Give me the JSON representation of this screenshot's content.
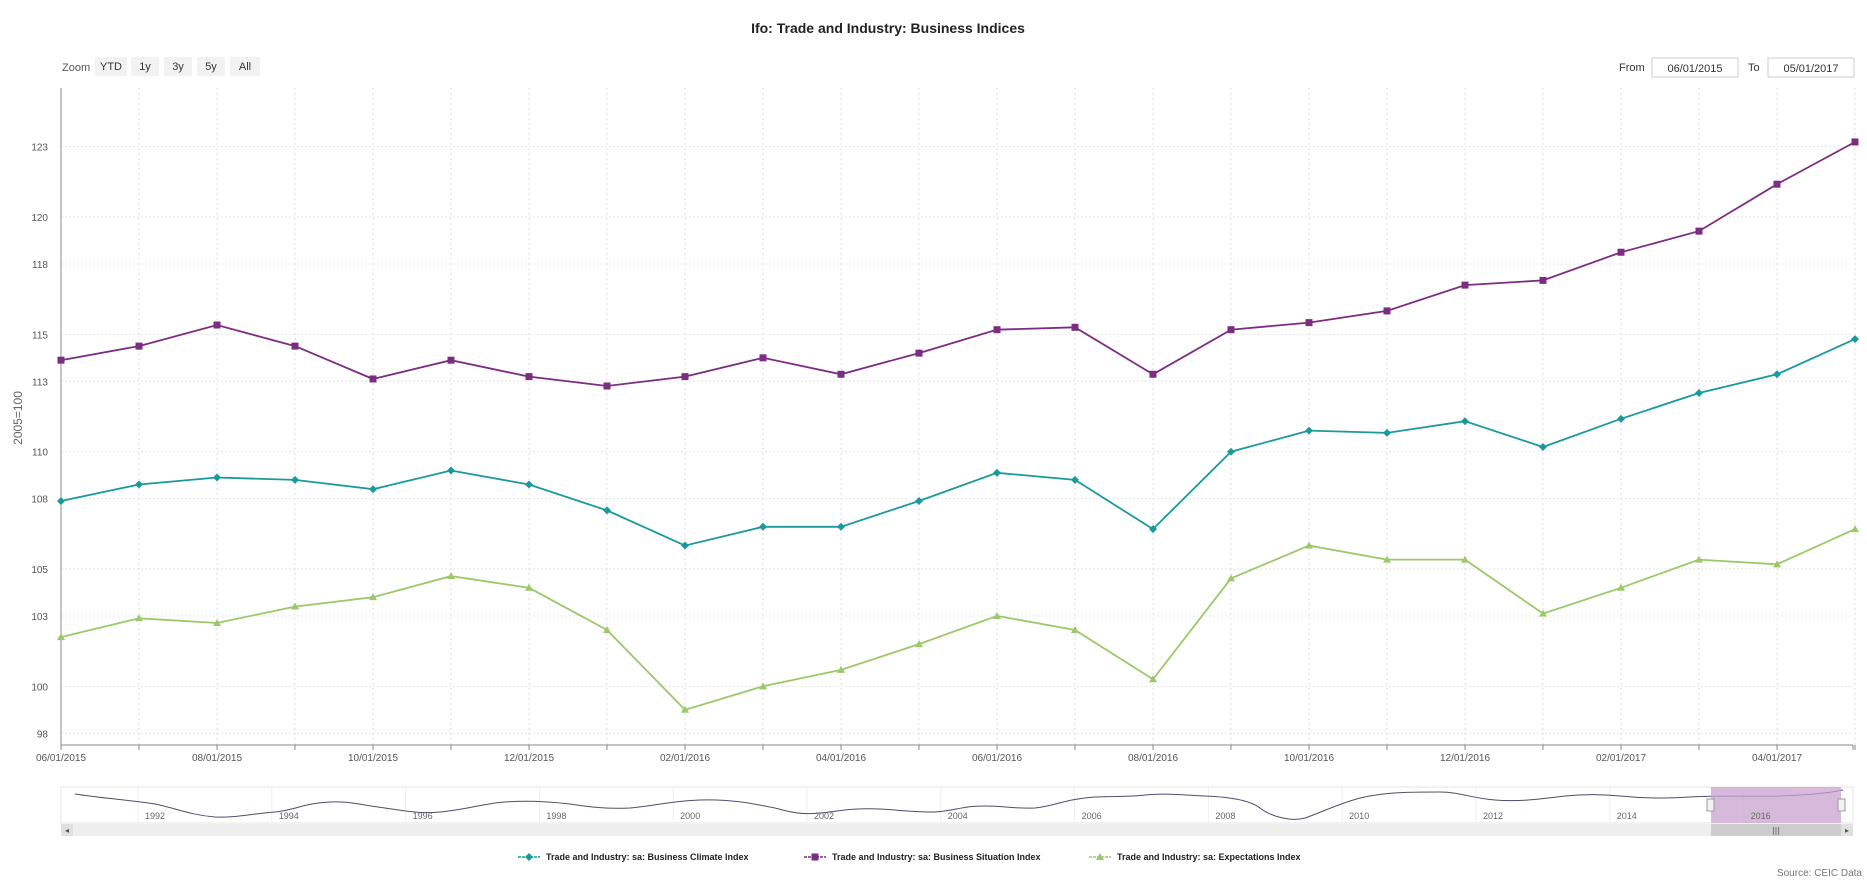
{
  "chart_data": {
    "type": "line",
    "title": "Ifo: Trade and Industry: Business Indices",
    "ylabel": "2005=100",
    "ylim": [
      97.5,
      125.5
    ],
    "yticks": [
      98,
      100,
      103,
      105,
      108,
      110,
      113,
      115,
      118,
      120,
      123
    ],
    "x": [
      "06/01/2015",
      "07/01/2015",
      "08/01/2015",
      "09/01/2015",
      "10/01/2015",
      "11/01/2015",
      "12/01/2015",
      "01/01/2016",
      "02/01/2016",
      "03/01/2016",
      "04/01/2016",
      "05/01/2016",
      "06/01/2016",
      "07/01/2016",
      "08/01/2016",
      "09/01/2016",
      "10/01/2016",
      "11/01/2016",
      "12/01/2016",
      "01/01/2017",
      "02/01/2017",
      "03/01/2017",
      "04/01/2017",
      "05/01/2017"
    ],
    "xtick_labels": [
      "06/01/2015",
      "",
      "08/01/2015",
      "",
      "10/01/2015",
      "",
      "12/01/2015",
      "",
      "02/01/2016",
      "",
      "04/01/2016",
      "",
      "06/01/2016",
      "",
      "08/01/2016",
      "",
      "10/01/2016",
      "",
      "12/01/2016",
      "",
      "02/01/2017",
      "",
      "04/01/2017",
      ""
    ],
    "grid": true,
    "legend_position": "bottom",
    "series": [
      {
        "name": "Trade and Industry: sa: Business Climate Index",
        "color": "#1a9a9c",
        "marker": "diamond",
        "values": [
          107.9,
          108.6,
          108.9,
          108.8,
          108.4,
          109.2,
          108.6,
          107.5,
          106.0,
          106.8,
          106.8,
          107.9,
          109.1,
          108.8,
          106.7,
          110.0,
          110.9,
          110.8,
          111.3,
          110.2,
          111.4,
          112.5,
          113.3,
          114.8
        ]
      },
      {
        "name": "Trade and Industry: sa: Business Situation Index",
        "color": "#7b2d82",
        "marker": "square",
        "values": [
          113.9,
          114.5,
          115.4,
          114.5,
          113.1,
          113.9,
          113.2,
          112.8,
          113.2,
          114.0,
          113.3,
          114.2,
          115.2,
          115.3,
          113.3,
          115.2,
          115.5,
          116.0,
          117.1,
          117.3,
          118.5,
          119.4,
          121.4,
          123.2
        ]
      },
      {
        "name": "Trade and Industry: sa: Expectations Index",
        "color": "#9dc86a",
        "marker": "triangle",
        "values": [
          102.1,
          102.9,
          102.7,
          103.4,
          103.8,
          104.7,
          104.2,
          102.4,
          99.0,
          100.0,
          100.7,
          101.8,
          103.0,
          102.4,
          100.3,
          104.6,
          106.0,
          105.4,
          105.4,
          103.1,
          104.2,
          105.4,
          105.2,
          106.7
        ]
      }
    ]
  },
  "zoom": {
    "label": "Zoom",
    "buttons": [
      "YTD",
      "1y",
      "3y",
      "5y",
      "All"
    ]
  },
  "range": {
    "from_label": "From",
    "from_value": "06/01/2015",
    "to_label": "To",
    "to_value": "05/01/2017"
  },
  "navigator": {
    "years": [
      "1992",
      "1994",
      "1996",
      "1998",
      "2000",
      "2002",
      "2004",
      "2006",
      "2008",
      "2010",
      "2012",
      "2014",
      "2016"
    ],
    "selected_color": "#c9a3cf",
    "scroll_grip": "|||"
  },
  "source": "Source: CEIC Data"
}
